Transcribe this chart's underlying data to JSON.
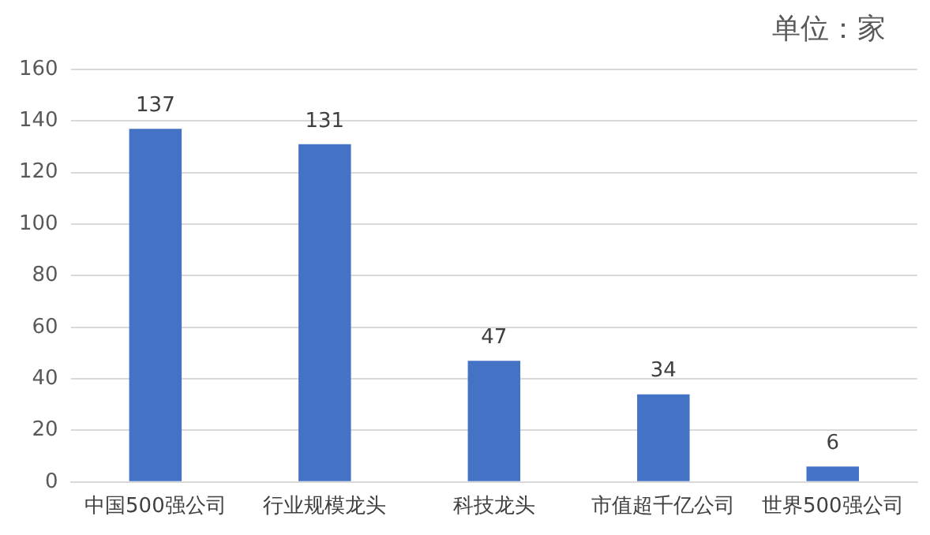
{
  "chart_data": {
    "type": "bar",
    "categories": [
      "中国500强公司",
      "行业规模龙头",
      "科技龙头",
      "市值超千亿公司",
      "世界500强公司"
    ],
    "values": [
      137,
      131,
      47,
      34,
      6
    ],
    "color": "#4472c4",
    "ylim": [
      0,
      160
    ],
    "yticks": [
      0,
      20,
      40,
      60,
      80,
      100,
      120,
      140,
      160
    ],
    "grid": "y",
    "data_labels": true,
    "annotations": [
      "单位：家"
    ]
  }
}
